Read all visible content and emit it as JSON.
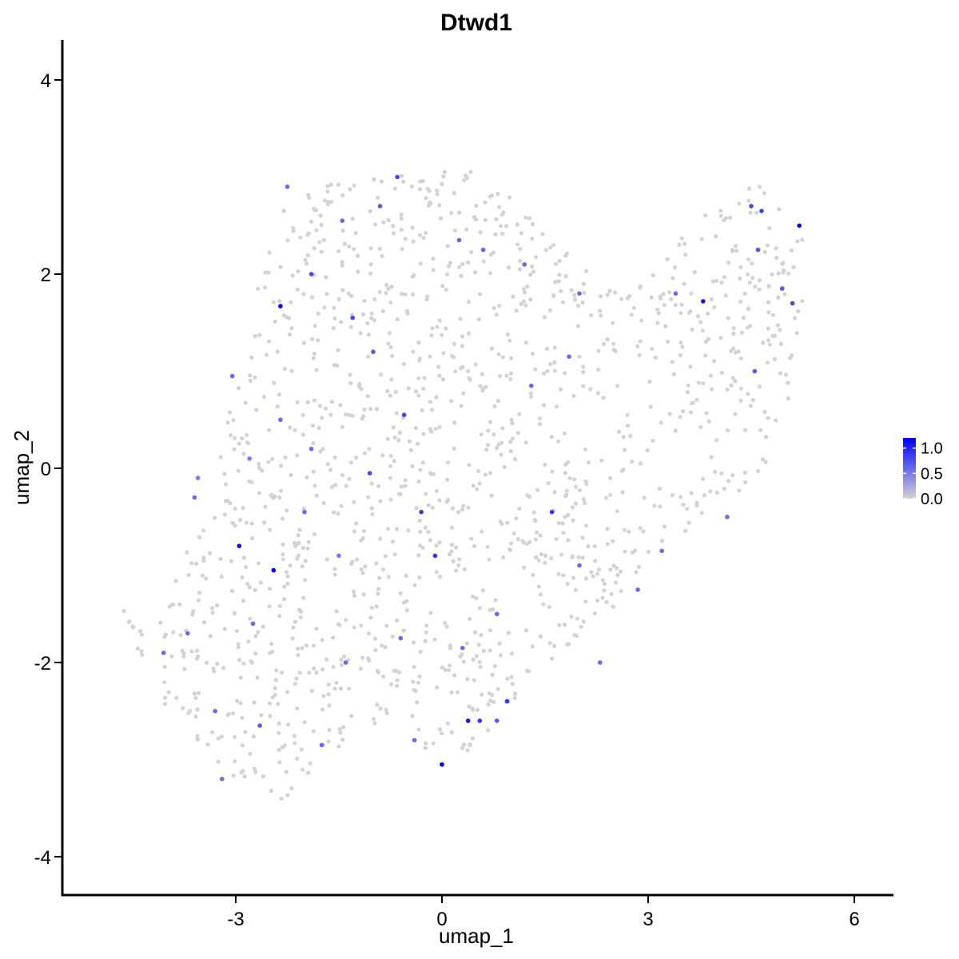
{
  "chart_data": {
    "type": "scatter",
    "title": "Dtwd1",
    "xlabel": "umap_1",
    "ylabel": "umap_2",
    "xlim": [
      -5.5,
      6.5
    ],
    "ylim": [
      -4.4,
      4.4
    ],
    "xticks": [
      -3,
      0,
      3,
      6
    ],
    "xtick_labels": [
      "-3",
      "0",
      "3",
      "6"
    ],
    "yticks": [
      -4,
      -2,
      0,
      2,
      4
    ],
    "ytick_labels": [
      "-4",
      "-2",
      "0",
      "2",
      "4"
    ],
    "grid": false,
    "color_scale": {
      "low_color": "#d3d3d3",
      "high_color": "#0000ff",
      "min": 0.0,
      "max": 1.2,
      "ticks": [
        0.0,
        0.5,
        1.0
      ],
      "tick_labels": [
        "0.0",
        "0.5",
        "1.0"
      ],
      "legend_position": "right"
    },
    "point_count_background": 1400,
    "region_outline_xy": [
      [
        -4.7,
        -1.25
      ],
      [
        -4.3,
        -1.5
      ],
      [
        -3.9,
        -1.1
      ],
      [
        -3.4,
        -0.3
      ],
      [
        -3.2,
        0.5
      ],
      [
        -2.9,
        1.3
      ],
      [
        -2.7,
        2.0
      ],
      [
        -2.3,
        2.7
      ],
      [
        -1.5,
        3.0
      ],
      [
        -0.5,
        3.05
      ],
      [
        0.3,
        3.1
      ],
      [
        0.8,
        2.9
      ],
      [
        1.5,
        2.6
      ],
      [
        1.9,
        2.2
      ],
      [
        2.3,
        1.9
      ],
      [
        3.0,
        2.0
      ],
      [
        3.6,
        2.55
      ],
      [
        4.3,
        2.8
      ],
      [
        4.6,
        3.05
      ],
      [
        5.0,
        2.6
      ],
      [
        5.35,
        2.3
      ],
      [
        5.2,
        1.1
      ],
      [
        4.9,
        0.2
      ],
      [
        4.4,
        -0.3
      ],
      [
        3.8,
        -0.5
      ],
      [
        3.2,
        -0.9
      ],
      [
        2.6,
        -1.4
      ],
      [
        2.0,
        -1.8
      ],
      [
        1.4,
        -2.2
      ],
      [
        0.9,
        -2.6
      ],
      [
        0.4,
        -2.9
      ],
      [
        0.0,
        -3.05
      ],
      [
        -0.8,
        -2.6
      ],
      [
        -1.4,
        -2.8
      ],
      [
        -1.9,
        -3.2
      ],
      [
        -2.4,
        -3.5
      ],
      [
        -3.0,
        -3.2
      ],
      [
        -3.6,
        -2.8
      ],
      [
        -4.1,
        -2.4
      ],
      [
        -4.4,
        -1.9
      ],
      [
        -4.6,
        -1.6
      ]
    ],
    "expressing_points": [
      {
        "x": -2.35,
        "y": 1.67,
        "v": 1.2
      },
      {
        "x": -2.45,
        "y": -1.05,
        "v": 1.2
      },
      {
        "x": -2.95,
        "y": -0.8,
        "v": 1.2
      },
      {
        "x": 0.0,
        "y": -3.05,
        "v": 1.2
      },
      {
        "x": 0.38,
        "y": -2.6,
        "v": 1.1
      },
      {
        "x": 5.2,
        "y": 2.5,
        "v": 1.2
      },
      {
        "x": 3.8,
        "y": 1.72,
        "v": 1.1
      },
      {
        "x": -0.65,
        "y": 3.0,
        "v": 0.8
      },
      {
        "x": -0.9,
        "y": 2.7,
        "v": 0.7
      },
      {
        "x": -1.9,
        "y": 2.0,
        "v": 0.8
      },
      {
        "x": -1.3,
        "y": 1.55,
        "v": 0.8
      },
      {
        "x": -1.0,
        "y": 1.2,
        "v": 0.7
      },
      {
        "x": -1.05,
        "y": -0.05,
        "v": 0.8
      },
      {
        "x": -0.55,
        "y": 0.55,
        "v": 0.8
      },
      {
        "x": -0.3,
        "y": -0.45,
        "v": 0.9
      },
      {
        "x": -0.1,
        "y": -0.9,
        "v": 0.9
      },
      {
        "x": 1.6,
        "y": -0.45,
        "v": 0.9
      },
      {
        "x": 0.95,
        "y": -2.4,
        "v": 0.9
      },
      {
        "x": 0.55,
        "y": -2.6,
        "v": 0.9
      },
      {
        "x": 4.5,
        "y": 2.7,
        "v": 0.8
      },
      {
        "x": 4.65,
        "y": 2.65,
        "v": 0.8
      },
      {
        "x": 4.6,
        "y": 2.25,
        "v": 0.7
      },
      {
        "x": 4.95,
        "y": 1.85,
        "v": 0.7
      },
      {
        "x": 5.1,
        "y": 1.7,
        "v": 0.8
      },
      {
        "x": 4.55,
        "y": 1.0,
        "v": 0.7
      },
      {
        "x": 4.15,
        "y": -0.5,
        "v": 0.6
      },
      {
        "x": 3.4,
        "y": 1.8,
        "v": 0.6
      },
      {
        "x": 2.0,
        "y": 1.8,
        "v": 0.6
      },
      {
        "x": 1.85,
        "y": 1.15,
        "v": 0.6
      },
      {
        "x": 1.3,
        "y": 0.85,
        "v": 0.6
      },
      {
        "x": -3.6,
        "y": -0.3,
        "v": 0.6
      },
      {
        "x": -3.55,
        "y": -0.1,
        "v": 0.5
      },
      {
        "x": -2.8,
        "y": 0.1,
        "v": 0.5
      },
      {
        "x": -2.35,
        "y": 0.5,
        "v": 0.6
      },
      {
        "x": -1.9,
        "y": 0.2,
        "v": 0.6
      },
      {
        "x": -3.05,
        "y": 0.95,
        "v": 0.6
      },
      {
        "x": -2.0,
        "y": -0.45,
        "v": 0.6
      },
      {
        "x": -1.5,
        "y": -0.9,
        "v": 0.5
      },
      {
        "x": -2.75,
        "y": -1.6,
        "v": 0.6
      },
      {
        "x": -3.7,
        "y": -1.7,
        "v": 0.6
      },
      {
        "x": -4.05,
        "y": -1.9,
        "v": 0.6
      },
      {
        "x": -3.3,
        "y": -2.5,
        "v": 0.6
      },
      {
        "x": -2.65,
        "y": -2.65,
        "v": 0.7
      },
      {
        "x": -3.2,
        "y": -3.2,
        "v": 0.6
      },
      {
        "x": -1.4,
        "y": -2.0,
        "v": 0.6
      },
      {
        "x": -1.75,
        "y": -2.85,
        "v": 0.6
      },
      {
        "x": -0.6,
        "y": -1.75,
        "v": 0.6
      },
      {
        "x": 0.3,
        "y": -1.85,
        "v": 0.6
      },
      {
        "x": 0.8,
        "y": -1.5,
        "v": 0.6
      },
      {
        "x": 2.0,
        "y": -1.0,
        "v": 0.6
      },
      {
        "x": 2.3,
        "y": -2.0,
        "v": 0.6
      },
      {
        "x": 2.85,
        "y": -1.25,
        "v": 0.6
      },
      {
        "x": 3.2,
        "y": -0.85,
        "v": 0.6
      },
      {
        "x": 0.25,
        "y": 2.35,
        "v": 0.6
      },
      {
        "x": 0.6,
        "y": 2.25,
        "v": 0.6
      },
      {
        "x": 1.2,
        "y": 2.1,
        "v": 0.6
      },
      {
        "x": -2.25,
        "y": 2.9,
        "v": 0.6
      },
      {
        "x": -1.45,
        "y": 2.55,
        "v": 0.6
      },
      {
        "x": 0.8,
        "y": -2.6,
        "v": 0.7
      },
      {
        "x": -0.4,
        "y": -2.8,
        "v": 0.6
      }
    ]
  }
}
